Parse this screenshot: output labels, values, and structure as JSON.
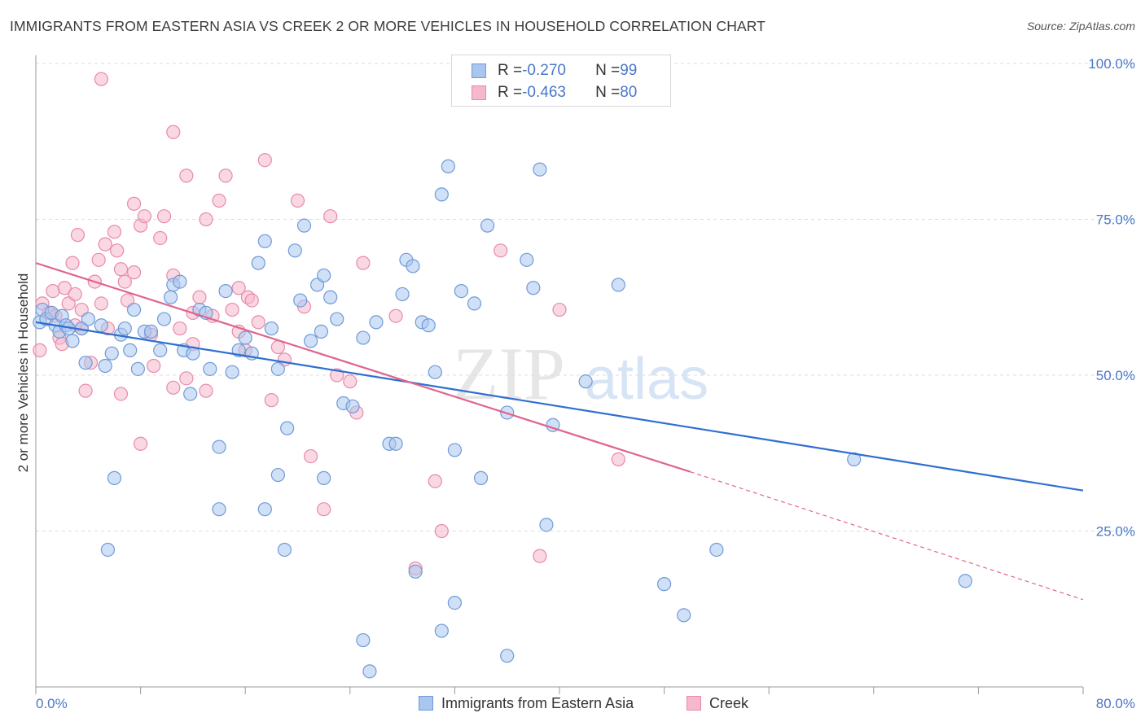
{
  "title": "IMMIGRANTS FROM EASTERN ASIA VS CREEK 2 OR MORE VEHICLES IN HOUSEHOLD CORRELATION CHART",
  "source": "Source: ZipAtlas.com",
  "watermark": {
    "zip": "ZIP",
    "atlas": "atlas"
  },
  "legend": {
    "rows": [
      {
        "r_label": "R = ",
        "r_value": "-0.270",
        "n_label": "N = ",
        "n_value": "99"
      },
      {
        "r_label": "R = ",
        "r_value": "-0.463",
        "n_label": "N = ",
        "n_value": "80"
      }
    ]
  },
  "colors": {
    "blue_fill": "#a9c6ef",
    "blue_stroke": "#6f9ad8",
    "blue_line": "#2f6fcf",
    "pink_fill": "#f6b8cc",
    "pink_stroke": "#e88aa8",
    "pink_line": "#e0648f",
    "grid": "#dddddd",
    "axis_label": "#4a78c7"
  },
  "chart_data": {
    "type": "scatter",
    "title": "IMMIGRANTS FROM EASTERN ASIA VS CREEK 2 OR MORE VEHICLES IN HOUSEHOLD CORRELATION CHART",
    "xlabel": "",
    "ylabel": "2 or more Vehicles in Household",
    "xlim": [
      0,
      80
    ],
    "ylim": [
      0,
      100
    ],
    "x_ticks": [
      "0.0%",
      "80.0%"
    ],
    "y_ticks": [
      {
        "value": 25,
        "label": "25.0%"
      },
      {
        "value": 50,
        "label": "50.0%"
      },
      {
        "value": 75,
        "label": "75.0%"
      },
      {
        "value": 100,
        "label": "100.0%"
      }
    ],
    "grid": true,
    "legend_position": "top-center",
    "series": [
      {
        "name": "Immigrants from Eastern Asia",
        "r": -0.27,
        "n": 99,
        "trend": {
          "x0": 0,
          "y0": 58.5,
          "x1": 80,
          "y1": 31.5
        },
        "points": [
          [
            0.3,
            58.5
          ],
          [
            0.5,
            60.5
          ],
          [
            0.8,
            59
          ],
          [
            1.2,
            60
          ],
          [
            1.5,
            58
          ],
          [
            1.8,
            57
          ],
          [
            2.0,
            59.5
          ],
          [
            2.3,
            58
          ],
          [
            2.8,
            55.5
          ],
          [
            2.5,
            57.5
          ],
          [
            3.5,
            57.5
          ],
          [
            3.8,
            52
          ],
          [
            5.0,
            58
          ],
          [
            5.3,
            51.5
          ],
          [
            5.8,
            53.5
          ],
          [
            6.5,
            56.5
          ],
          [
            6.8,
            57.5
          ],
          [
            7.2,
            54
          ],
          [
            7.5,
            60.5
          ],
          [
            7.8,
            51
          ],
          [
            8.3,
            57
          ],
          [
            8.8,
            57
          ],
          [
            9.5,
            54
          ],
          [
            9.8,
            59
          ],
          [
            10.3,
            62.5
          ],
          [
            10.5,
            64.5
          ],
          [
            11.3,
            54
          ],
          [
            11.8,
            47
          ],
          [
            12.0,
            53.5
          ],
          [
            12.5,
            60.5
          ],
          [
            13.0,
            60
          ],
          [
            13.3,
            51
          ],
          [
            14.0,
            38.5
          ],
          [
            14.5,
            63.5
          ],
          [
            15.0,
            50.5
          ],
          [
            15.5,
            54
          ],
          [
            16.0,
            56
          ],
          [
            16.5,
            53.5
          ],
          [
            17.5,
            71.5
          ],
          [
            17.0,
            68
          ],
          [
            18.0,
            57.5
          ],
          [
            18.5,
            51
          ],
          [
            19.2,
            41.5
          ],
          [
            19.8,
            70
          ],
          [
            20.2,
            62
          ],
          [
            20.5,
            74
          ],
          [
            21.0,
            55.5
          ],
          [
            21.5,
            64.5
          ],
          [
            21.8,
            57
          ],
          [
            22.0,
            66
          ],
          [
            22.5,
            62.5
          ],
          [
            23.0,
            59
          ],
          [
            23.5,
            45.5
          ],
          [
            24.2,
            45
          ],
          [
            25.0,
            56
          ],
          [
            26.0,
            58.5
          ],
          [
            27.0,
            39
          ],
          [
            27.5,
            39
          ],
          [
            28.0,
            63
          ],
          [
            28.3,
            68.5
          ],
          [
            28.8,
            67.5
          ],
          [
            29.5,
            58.5
          ],
          [
            30.0,
            58
          ],
          [
            30.5,
            50.5
          ],
          [
            31.0,
            79
          ],
          [
            31.5,
            83.5
          ],
          [
            32.0,
            38
          ],
          [
            32.5,
            63.5
          ],
          [
            33.5,
            61.5
          ],
          [
            34.0,
            33.5
          ],
          [
            34.5,
            74
          ],
          [
            36.0,
            44
          ],
          [
            37.5,
            68.5
          ],
          [
            38.0,
            64
          ],
          [
            38.5,
            83
          ],
          [
            39.0,
            26
          ],
          [
            39.5,
            42
          ],
          [
            42.0,
            49
          ],
          [
            44.5,
            64.5
          ],
          [
            6.0,
            33.5
          ],
          [
            5.5,
            22
          ],
          [
            14.0,
            28.5
          ],
          [
            17.5,
            28.5
          ],
          [
            18.5,
            34
          ],
          [
            19.0,
            22
          ],
          [
            22.0,
            33.5
          ],
          [
            25.0,
            7.5
          ],
          [
            25.5,
            2.5
          ],
          [
            29.0,
            18.5
          ],
          [
            32.0,
            13.5
          ],
          [
            31.0,
            9
          ],
          [
            36.0,
            5
          ],
          [
            48.0,
            16.5
          ],
          [
            49.5,
            11.5
          ],
          [
            52.0,
            22
          ],
          [
            62.5,
            36.5
          ],
          [
            71.0,
            17
          ],
          [
            11.0,
            65.0
          ],
          [
            4.0,
            59.0
          ]
        ]
      },
      {
        "name": "Creek",
        "r": -0.463,
        "n": 80,
        "trend": {
          "x0": 0,
          "y0": 68,
          "x1": 50,
          "y1": 34.5,
          "dash_x1": 80,
          "dash_y1": 14
        },
        "points": [
          [
            0.3,
            54
          ],
          [
            0.5,
            61.5
          ],
          [
            1.0,
            60
          ],
          [
            1.3,
            63.5
          ],
          [
            1.5,
            59.5
          ],
          [
            1.8,
            56
          ],
          [
            2.2,
            64
          ],
          [
            2.5,
            61.5
          ],
          [
            2.8,
            68
          ],
          [
            3.0,
            63
          ],
          [
            3.2,
            72.5
          ],
          [
            3.5,
            57.5
          ],
          [
            3.8,
            47.5
          ],
          [
            4.2,
            52
          ],
          [
            4.5,
            65
          ],
          [
            4.8,
            68.5
          ],
          [
            5.0,
            61.5
          ],
          [
            5.3,
            71
          ],
          [
            5.5,
            57.5
          ],
          [
            6.0,
            73
          ],
          [
            6.2,
            70
          ],
          [
            6.5,
            67
          ],
          [
            6.8,
            65
          ],
          [
            7.0,
            62
          ],
          [
            7.5,
            77.5
          ],
          [
            7.5,
            66.5
          ],
          [
            8.0,
            74
          ],
          [
            8.3,
            75.5
          ],
          [
            8.8,
            56.5
          ],
          [
            9.5,
            72
          ],
          [
            9.8,
            75.5
          ],
          [
            10.5,
            66
          ],
          [
            11.0,
            57.5
          ],
          [
            11.5,
            82
          ],
          [
            12.0,
            60
          ],
          [
            12.5,
            62.5
          ],
          [
            13.0,
            47.5
          ],
          [
            13.5,
            59.5
          ],
          [
            14.0,
            78
          ],
          [
            14.5,
            82
          ],
          [
            15.0,
            60.5
          ],
          [
            15.5,
            57
          ],
          [
            16.0,
            54
          ],
          [
            16.2,
            62.5
          ],
          [
            16.5,
            62
          ],
          [
            17.0,
            58.5
          ],
          [
            17.5,
            84.5
          ],
          [
            18.0,
            46
          ],
          [
            18.5,
            54.5
          ],
          [
            19.0,
            52.5
          ],
          [
            20.0,
            78
          ],
          [
            20.5,
            61
          ],
          [
            21.0,
            37
          ],
          [
            22.0,
            28.5
          ],
          [
            22.5,
            75.5
          ],
          [
            23.0,
            50
          ],
          [
            24.0,
            49
          ],
          [
            24.5,
            44
          ],
          [
            25.0,
            68
          ],
          [
            27.5,
            59.5
          ],
          [
            29.0,
            19
          ],
          [
            30.5,
            33
          ],
          [
            31.0,
            25
          ],
          [
            35.5,
            70
          ],
          [
            38.5,
            21
          ],
          [
            40.0,
            60.5
          ],
          [
            44.5,
            36.5
          ],
          [
            5.0,
            97.5
          ],
          [
            10.5,
            89
          ],
          [
            13.0,
            75
          ],
          [
            8.0,
            39
          ],
          [
            6.5,
            47
          ],
          [
            10.5,
            48
          ],
          [
            11.5,
            49.5
          ],
          [
            3.5,
            60.5
          ],
          [
            9.0,
            51.5
          ],
          [
            15.5,
            64
          ],
          [
            12.0,
            55
          ],
          [
            3.0,
            58.0
          ],
          [
            2.0,
            55.0
          ]
        ]
      }
    ]
  },
  "bottom_legend": [
    {
      "label": "Immigrants from Eastern Asia"
    },
    {
      "label": "Creek"
    }
  ]
}
